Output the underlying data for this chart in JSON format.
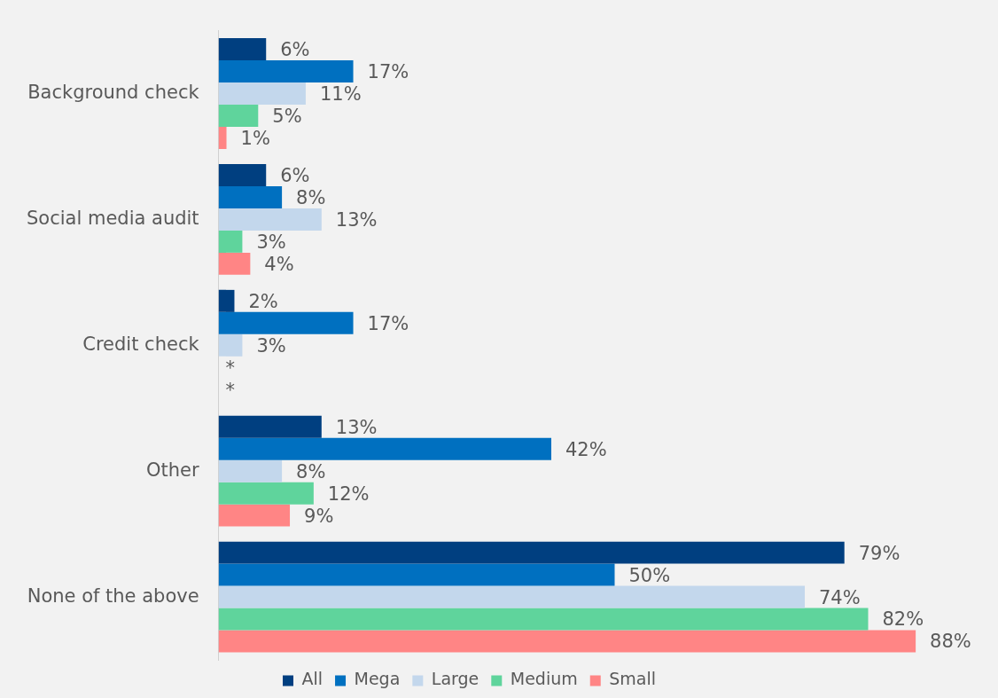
{
  "chart_data": {
    "type": "bar",
    "orientation": "horizontal",
    "categories": [
      "Background check",
      "Social media audit",
      "Credit check",
      "Other",
      "None of the above"
    ],
    "series": [
      {
        "name": "All",
        "color": "#003f80",
        "values": [
          6,
          6,
          2,
          13,
          79
        ],
        "value_labels": [
          "6%",
          "6%",
          "2%",
          "13%",
          "79%"
        ]
      },
      {
        "name": "Mega",
        "color": "#0070c0",
        "values": [
          17,
          8,
          17,
          42,
          50
        ],
        "value_labels": [
          "17%",
          "8%",
          "17%",
          "42%",
          "50%"
        ]
      },
      {
        "name": "Large",
        "color": "#c3d7ec",
        "values": [
          11,
          13,
          3,
          8,
          74
        ],
        "value_labels": [
          "11%",
          "13%",
          "3%",
          "8%",
          "74%"
        ]
      },
      {
        "name": "Medium",
        "color": "#5fd49c",
        "values": [
          5,
          3,
          null,
          12,
          82
        ],
        "value_labels": [
          "5%",
          "3%",
          "*",
          "12%",
          "82%"
        ]
      },
      {
        "name": "Small",
        "color": "#ff8585",
        "values": [
          1,
          4,
          null,
          9,
          88
        ],
        "value_labels": [
          "1%",
          "4%",
          "*",
          "9%",
          "88%"
        ]
      }
    ],
    "grid": false,
    "legend": "bottom",
    "tick_labels": "y"
  }
}
